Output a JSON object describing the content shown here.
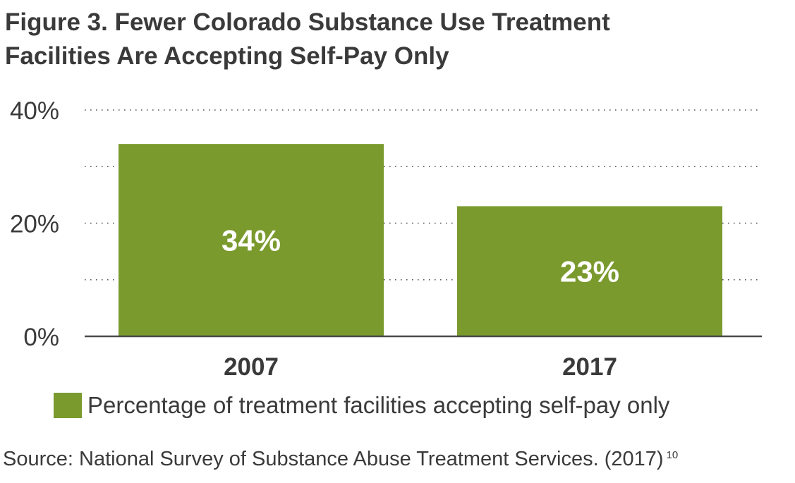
{
  "chart_data": {
    "type": "bar",
    "title": "Figure 3. Fewer Colorado Substance Use Treatment Facilities Are Accepting Self-Pay Only",
    "title_lines": [
      "Figure 3. Fewer Colorado Substance Use Treatment",
      "Facilities Are Accepting Self-Pay Only"
    ],
    "categories": [
      "2007",
      "2017"
    ],
    "series": [
      {
        "name": "Percentage of treatment facilities accepting self-pay only",
        "values": [
          34,
          23
        ],
        "data_labels": [
          "34%",
          "23%"
        ],
        "color": "#7a9a2e"
      }
    ],
    "ylim": [
      0,
      40
    ],
    "y_ticks": [
      {
        "value": 0,
        "label": "0%"
      },
      {
        "value": 20,
        "label": "20%"
      },
      {
        "value": 40,
        "label": "40%"
      }
    ],
    "gridlines": [
      10,
      20,
      30,
      40
    ],
    "grid": "dotted",
    "legend_position": "bottom-left",
    "source": "Source: National Survey of Substance Abuse Treatment Services. (2017)",
    "source_ref": "10"
  }
}
